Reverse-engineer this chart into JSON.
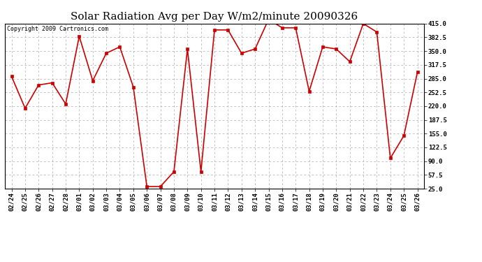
{
  "title": "Solar Radiation Avg per Day W/m2/minute 20090326",
  "copyright": "Copyright 2009 Cartronics.com",
  "labels": [
    "02/24",
    "02/25",
    "02/26",
    "02/27",
    "02/28",
    "03/01",
    "03/02",
    "03/03",
    "03/04",
    "03/05",
    "03/06",
    "03/07",
    "03/08",
    "03/09",
    "03/10",
    "03/11",
    "03/12",
    "03/13",
    "03/14",
    "03/15",
    "03/16",
    "03/17",
    "03/18",
    "03/19",
    "03/20",
    "03/21",
    "03/22",
    "03/23",
    "03/24",
    "03/25",
    "03/26"
  ],
  "values": [
    290,
    215,
    270,
    275,
    225,
    385,
    280,
    345,
    360,
    265,
    30,
    30,
    65,
    355,
    65,
    400,
    400,
    345,
    355,
    425,
    405,
    405,
    255,
    360,
    355,
    325,
    415,
    395,
    97,
    150,
    300
  ],
  "line_color": "#cc0000",
  "marker_color": "#cc0000",
  "bg_color": "#ffffff",
  "grid_color": "#aaaaaa",
  "ymin": 25.0,
  "ymax": 415.0,
  "yticks": [
    25.0,
    57.5,
    90.0,
    122.5,
    155.0,
    187.5,
    220.0,
    252.5,
    285.0,
    317.5,
    350.0,
    382.5,
    415.0
  ],
  "title_fontsize": 11,
  "copyright_fontsize": 6,
  "tick_fontsize": 6.5
}
